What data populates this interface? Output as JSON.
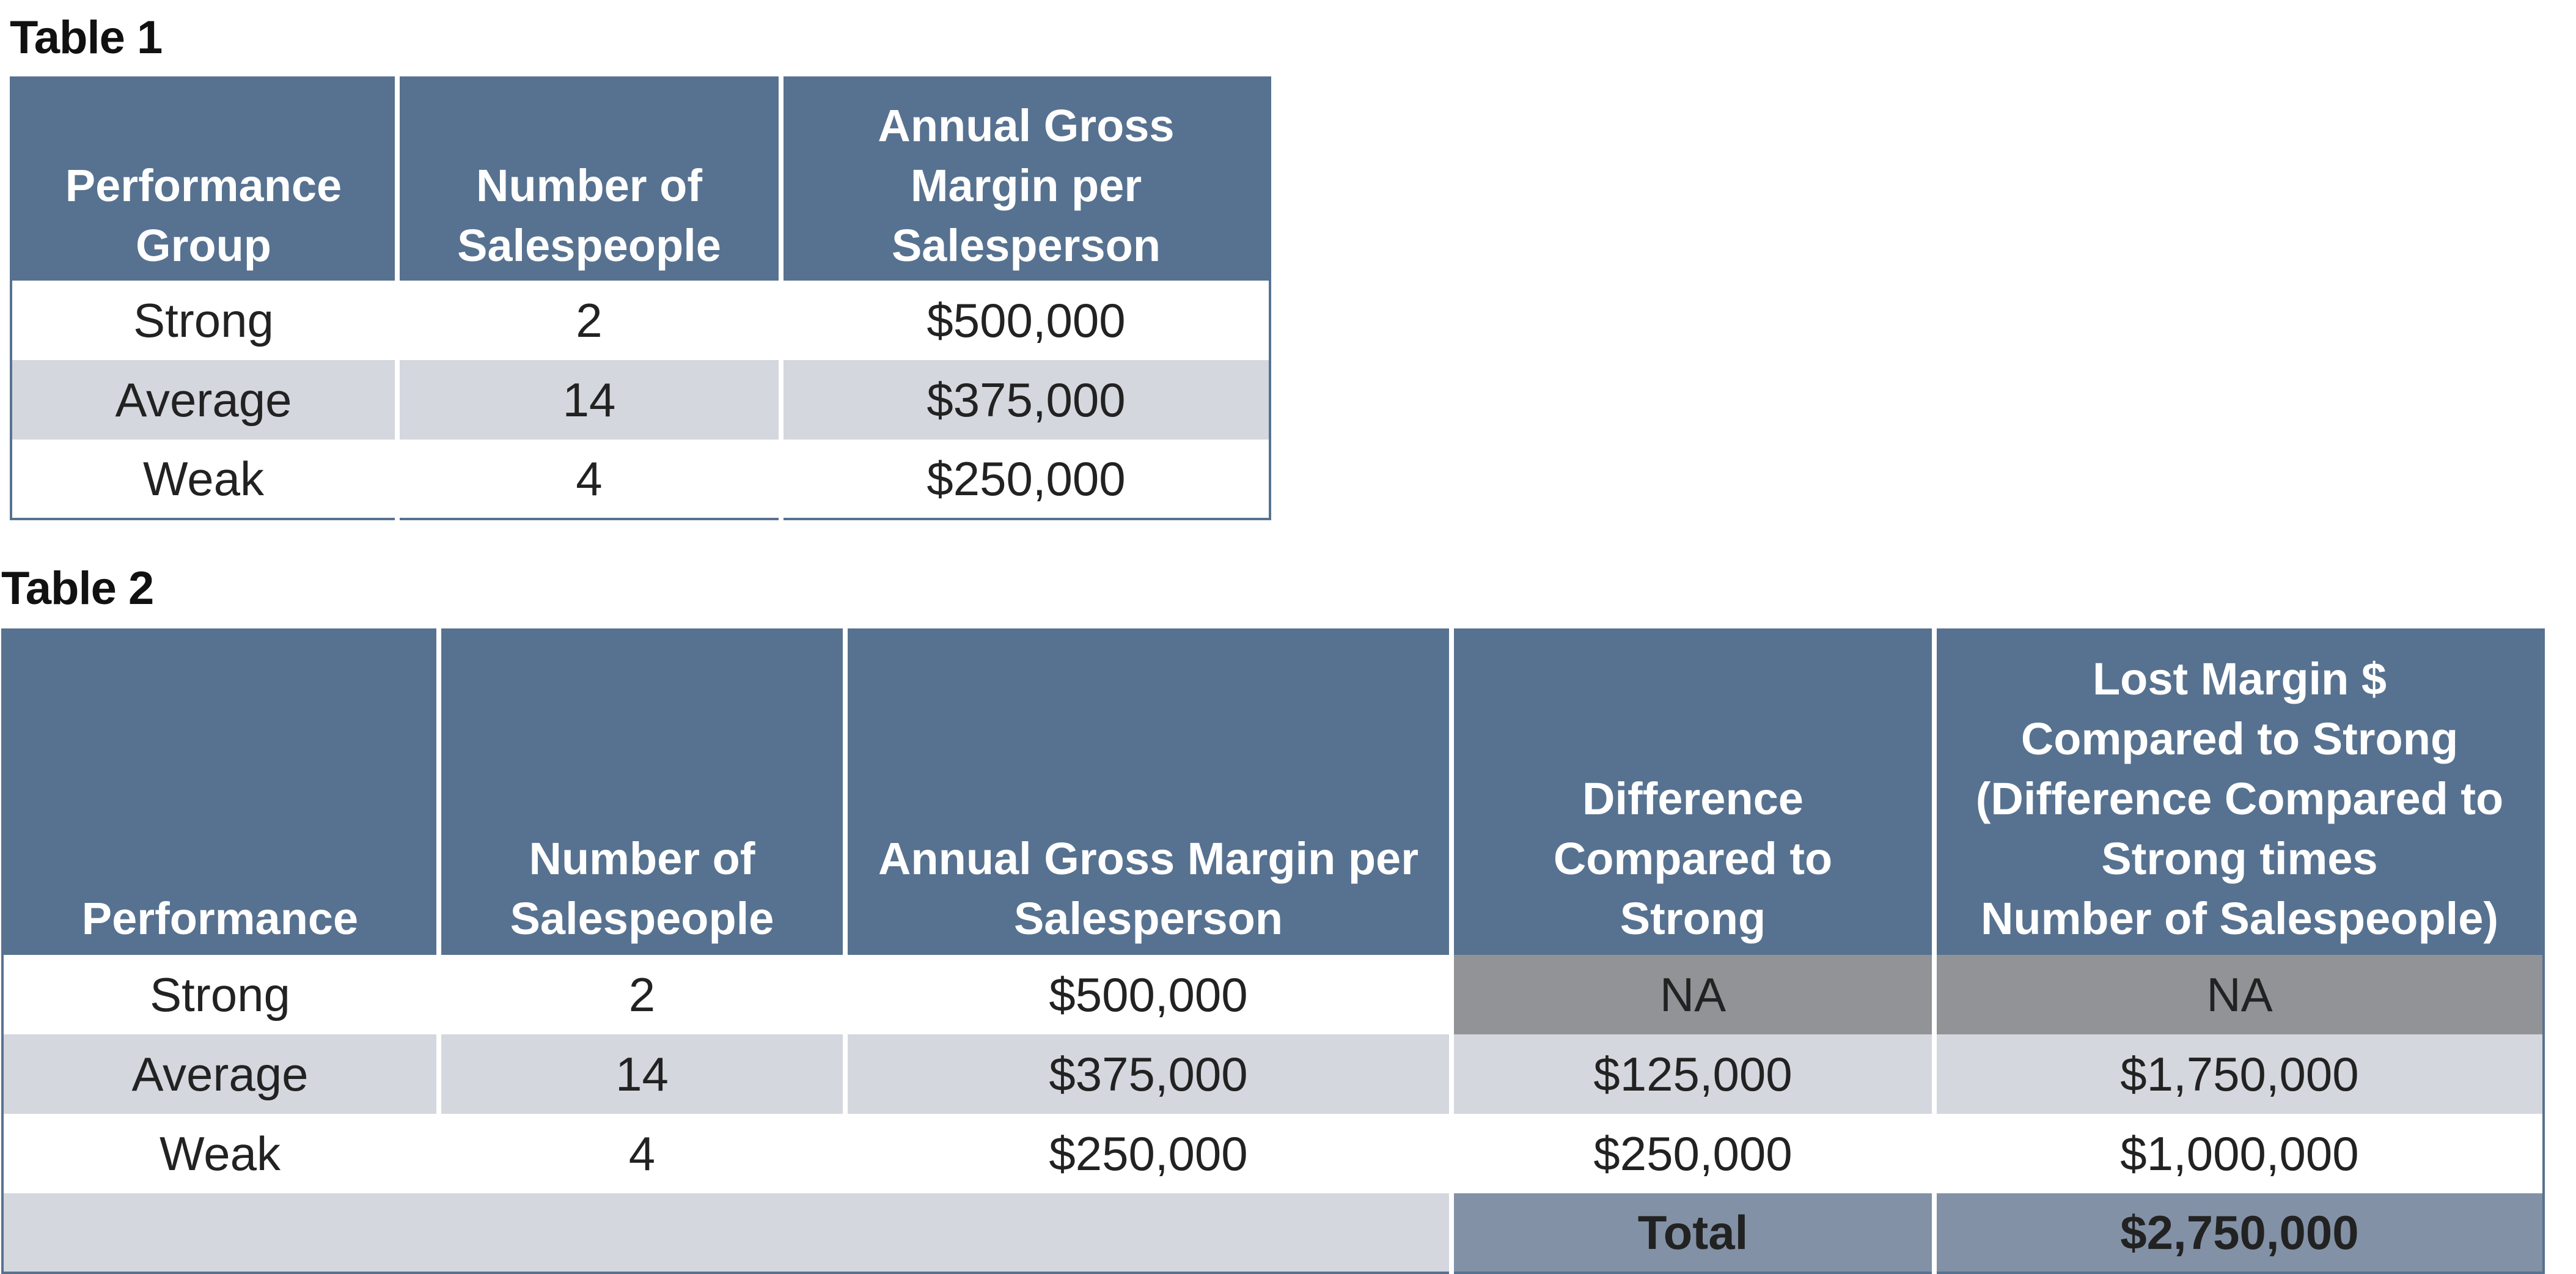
{
  "table1": {
    "title": "Table 1",
    "headers": [
      [
        "Performance",
        "Group"
      ],
      [
        "Number of",
        "Salespeople"
      ],
      [
        "Annual Gross",
        "Margin per",
        "Salesperson"
      ]
    ],
    "rows": [
      [
        "Strong",
        "2",
        "$500,000"
      ],
      [
        "Average",
        "14",
        "$375,000"
      ],
      [
        "Weak",
        "4",
        "$250,000"
      ]
    ]
  },
  "table2": {
    "title": "Table 2",
    "headers": [
      [
        "Performance"
      ],
      [
        "Number of",
        "Salespeople"
      ],
      [
        "Annual Gross Margin per",
        "Salesperson"
      ],
      [
        "Difference",
        "Compared to",
        "Strong"
      ],
      [
        "Lost Margin $",
        "Compared to Strong",
        "(Difference Compared to",
        "Strong times",
        "Number of Salespeople)"
      ]
    ],
    "rows": [
      [
        "Strong",
        "2",
        "$500,000",
        "NA",
        "NA"
      ],
      [
        "Average",
        "14",
        "$375,000",
        "$125,000",
        "$1,750,000"
      ],
      [
        "Weak",
        "4",
        "$250,000",
        "$250,000",
        "$1,000,000"
      ]
    ],
    "total_label": "Total",
    "total_value": "$2,750,000"
  },
  "colors": {
    "header_bg": "#577290",
    "row_gray": "#d4d7de",
    "na_bg": "#929396",
    "total_bg": "#8291a6"
  }
}
